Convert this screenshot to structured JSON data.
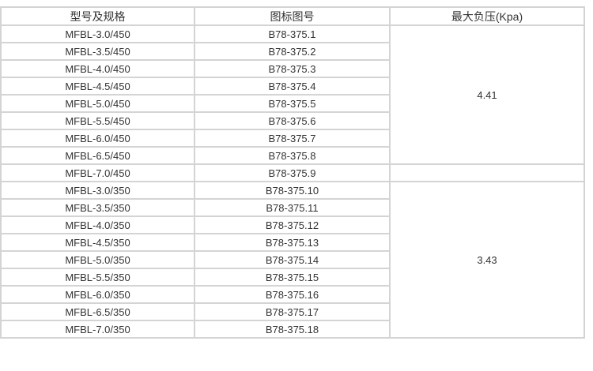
{
  "headers": [
    "型号及规格",
    "图标图号",
    "最大负压(Kpa)"
  ],
  "rows": [
    [
      "MFBL-3.0/450",
      "B78-375.1"
    ],
    [
      "MFBL-3.5/450",
      "B78-375.2"
    ],
    [
      "MFBL-4.0/450",
      "B78-375.3"
    ],
    [
      "MFBL-4.5/450",
      "B78-375.4"
    ],
    [
      "MFBL-5.0/450",
      "B78-375.5"
    ],
    [
      "MFBL-5.5/450",
      "B78-375.6"
    ],
    [
      "MFBL-6.0/450",
      "B78-375.7"
    ],
    [
      "MFBL-6.5/450",
      "B78-375.8"
    ],
    [
      "MFBL-7.0/450",
      "B78-375.9"
    ],
    [
      "MFBL-3.0/350",
      "B78-375.10"
    ],
    [
      "MFBL-3.5/350",
      "B78-375.11"
    ],
    [
      "MFBL-4.0/350",
      "B78-375.12"
    ],
    [
      "MFBL-4.5/350",
      "B78-375.13"
    ],
    [
      "MFBL-5.0/350",
      "B78-375.14"
    ],
    [
      "MFBL-5.5/350",
      "B78-375.15"
    ],
    [
      "MFBL-6.0/350",
      "B78-375.16"
    ],
    [
      "MFBL-6.5/350",
      "B78-375.17"
    ],
    [
      "MFBL-7.0/350",
      "B78-375.18"
    ]
  ],
  "pressure_groups": [
    {
      "value": "4.41",
      "rows": 8
    },
    {
      "value": "",
      "rows": 1
    },
    {
      "value": "3.43",
      "rows": 9
    }
  ]
}
